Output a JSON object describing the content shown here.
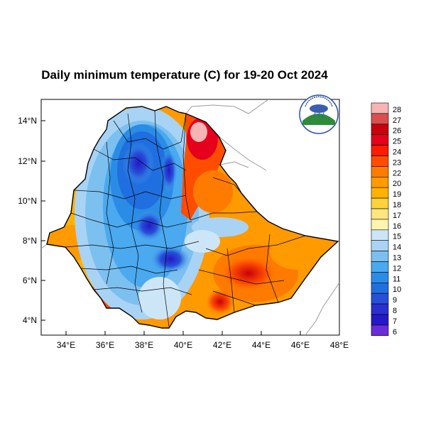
{
  "title": "Daily minimum temperature (C) for 19-20 Oct 2024",
  "axes": {
    "lat_ticks": [
      "14°N",
      "12°N",
      "10°N",
      "8°N",
      "6°N",
      "4°N"
    ],
    "lon_ticks": [
      "34°E",
      "36°E",
      "38°E",
      "40°E",
      "42°E",
      "44°E",
      "46°E",
      "48°E"
    ]
  },
  "colorbar": {
    "levels": [
      "28",
      "27",
      "26",
      "25",
      "24",
      "23",
      "22",
      "20",
      "19",
      "18",
      "17",
      "16",
      "15",
      "14",
      "13",
      "12",
      "11",
      "10",
      "9",
      "8",
      "7",
      "6"
    ],
    "colors": [
      "#f7b4b4",
      "#d94f4f",
      "#c8000e",
      "#e5001b",
      "#ff1a00",
      "#ff4d00",
      "#ff7b00",
      "#ff9a00",
      "#ffb300",
      "#ffd23c",
      "#ffe680",
      "#fff5b0",
      "#cde6f7",
      "#a8d3f5",
      "#7cc0f0",
      "#4aa9ef",
      "#2b8ce6",
      "#1f6fe0",
      "#2750d8",
      "#2a2fd0",
      "#2518c8",
      "#6a2bd9"
    ]
  },
  "logo": {
    "alt": "Ethiopian Meteorology Institute emblem"
  }
}
